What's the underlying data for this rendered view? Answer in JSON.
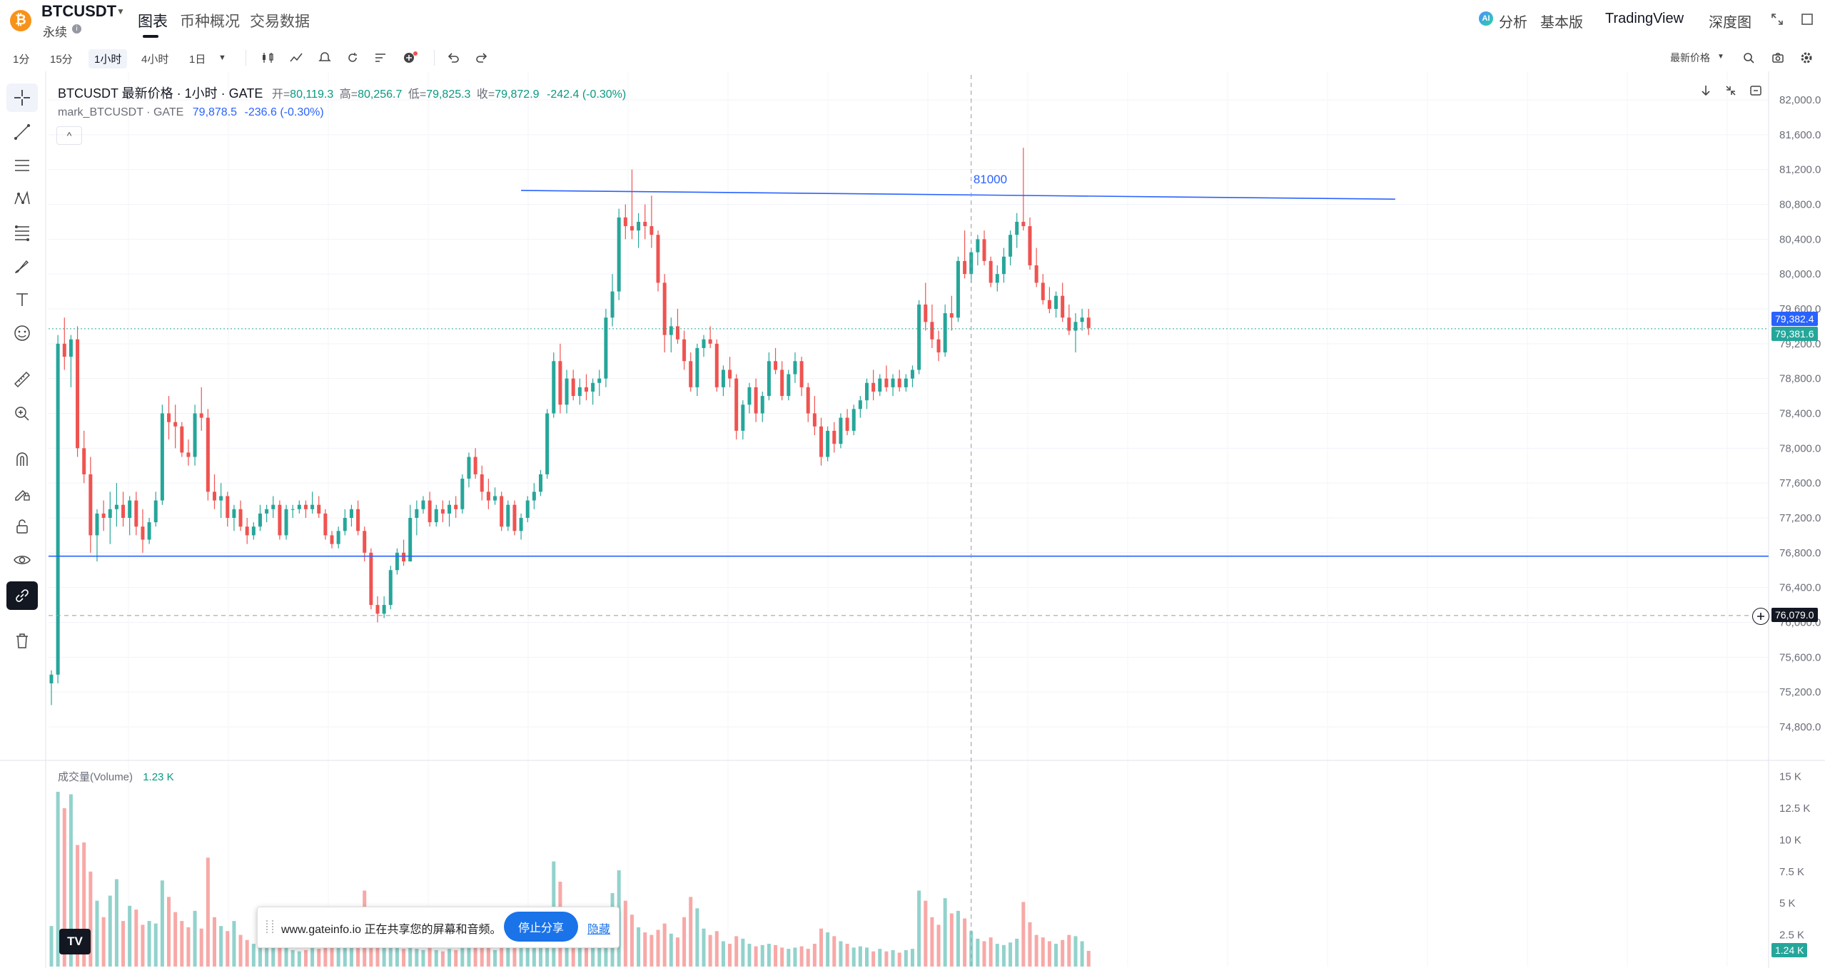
{
  "header": {
    "symbol": "BTCUSDT",
    "coin_glyph": "₿",
    "contract_type": "永续",
    "info_glyph": "i",
    "tabs": [
      {
        "label": "图表",
        "active": true
      },
      {
        "label": "币种概况",
        "active": false
      },
      {
        "label": "交易数据",
        "active": false
      }
    ],
    "ai_glyph": "AI",
    "right_nav": [
      {
        "label": "分析"
      },
      {
        "label": "基本版"
      },
      {
        "label": "TradingView"
      },
      {
        "label": "深度图"
      }
    ]
  },
  "toolbar": {
    "timeframes": [
      {
        "label": "1分",
        "selected": false
      },
      {
        "label": "15分",
        "selected": false
      },
      {
        "label": "1小时",
        "selected": true
      },
      {
        "label": "4小时",
        "selected": false
      },
      {
        "label": "1日",
        "selected": false
      }
    ],
    "price_source_label": "最新价格"
  },
  "legend": {
    "title": "BTCUSDT 最新价格 · 1小时 · GATE",
    "open_label": "开=",
    "open": "80,119.3",
    "high_label": "高=",
    "high": "80,256.7",
    "low_label": "低=",
    "low": "79,825.3",
    "close_label": "收=",
    "close": "79,872.9",
    "change": "-242.4 (-0.30%)",
    "mark_title": "mark_BTCUSDT · GATE",
    "mark_value": "79,878.5",
    "mark_change": "-236.6 (-0.30%)",
    "collapse_glyph": "^"
  },
  "volume": {
    "title": "成交量(Volume)",
    "value": "1.23 K",
    "last_tag": "1.24 K"
  },
  "drawn_line_label": "81000",
  "price_tags": {
    "last_price": "79,382.4",
    "mark_price": "79,381.6",
    "crosshair_price": "76,079.0"
  },
  "share_bar": {
    "text": "www.gateinfo.io 正在共享您的屏幕和音频。",
    "stop_button": "停止分享",
    "hide_link": "隐藏"
  },
  "tv_logo": "TV",
  "colors": {
    "up": "#26a69a",
    "down": "#ef5350",
    "drawn_line": "#2962ff",
    "last_price": "#2962ff",
    "mark_price": "#26a69a",
    "crosshair_tag": "#131722"
  },
  "chart_data": {
    "type": "candlestick",
    "price_axis_ticks": [
      "82,000.0",
      "81,600.0",
      "81,200.0",
      "80,800.0",
      "80,400.0",
      "80,000.0",
      "79,600.0",
      "79,200.0",
      "78,800.0",
      "78,400.0",
      "78,000.0",
      "77,600.0",
      "77,200.0",
      "76,800.0",
      "76,400.0",
      "76,000.0",
      "75,600.0",
      "75,200.0",
      "74,800.0"
    ],
    "price_axis_values": [
      82000,
      81600,
      81200,
      80800,
      80400,
      80000,
      79600,
      79200,
      78800,
      78400,
      78000,
      77600,
      77200,
      76800,
      76400,
      76000,
      75600,
      75200,
      74800
    ],
    "volume_axis_ticks": [
      "15 K",
      "12.5 K",
      "10 K",
      "7.5 K",
      "5 K",
      "2.5 K"
    ],
    "volume_axis_values": [
      15000,
      12500,
      10000,
      7500,
      5000,
      2500
    ],
    "ylim": [
      74500,
      82200
    ],
    "volume_ylim": [
      0,
      15600
    ],
    "horizontal_lines": [
      {
        "price": 76760
      }
    ],
    "trend_lines": [
      {
        "from_index": 72,
        "from_price": 80960,
        "to_index": 206,
        "to_price": 80860,
        "label": "81000"
      }
    ],
    "crosshair": {
      "index": 141,
      "price": 76079
    },
    "ohlcv": [
      [
        75300,
        75450,
        75050,
        75400,
        3200
      ],
      [
        75400,
        79300,
        75300,
        79200,
        13800
      ],
      [
        79200,
        79500,
        78900,
        79050,
        12500
      ],
      [
        79050,
        79300,
        78700,
        79250,
        13600
      ],
      [
        79250,
        79400,
        77900,
        78000,
        9600
      ],
      [
        78000,
        78200,
        77600,
        77700,
        9800
      ],
      [
        77700,
        77900,
        76800,
        77000,
        7500
      ],
      [
        77000,
        77300,
        76700,
        77250,
        5200
      ],
      [
        77250,
        77400,
        77050,
        77200,
        3900
      ],
      [
        77200,
        77500,
        76900,
        77300,
        5600
      ],
      [
        77300,
        77600,
        77100,
        77350,
        6900
      ],
      [
        77350,
        77500,
        77100,
        77200,
        3600
      ],
      [
        77200,
        77450,
        77000,
        77400,
        4800
      ],
      [
        77400,
        77500,
        77000,
        77100,
        4500
      ],
      [
        77100,
        77300,
        76800,
        76950,
        3300
      ],
      [
        76950,
        77200,
        76900,
        77150,
        3600
      ],
      [
        77150,
        77500,
        77100,
        77400,
        3400
      ],
      [
        77400,
        78500,
        77350,
        78400,
        6800
      ],
      [
        78400,
        78600,
        78100,
        78300,
        5500
      ],
      [
        78300,
        78500,
        78000,
        78250,
        4300
      ],
      [
        78250,
        78300,
        77900,
        77950,
        3600
      ],
      [
        77950,
        78100,
        77800,
        77900,
        3100
      ],
      [
        77900,
        78500,
        77800,
        78400,
        4400
      ],
      [
        78400,
        78700,
        78200,
        78350,
        3000
      ],
      [
        78350,
        78450,
        77400,
        77500,
        8600
      ],
      [
        77500,
        77700,
        77300,
        77400,
        3900
      ],
      [
        77400,
        77600,
        77200,
        77450,
        3200
      ],
      [
        77450,
        77500,
        77100,
        77200,
        2800
      ],
      [
        77200,
        77350,
        77050,
        77300,
        3600
      ],
      [
        77300,
        77400,
        77050,
        77100,
        2500
      ],
      [
        77100,
        77200,
        76900,
        77000,
        2100
      ],
      [
        77000,
        77150,
        76950,
        77100,
        1800
      ],
      [
        77100,
        77350,
        77050,
        77250,
        1700
      ],
      [
        77250,
        77350,
        77150,
        77300,
        1500
      ],
      [
        77300,
        77450,
        77200,
        77350,
        1600
      ],
      [
        77350,
        77400,
        76950,
        77000,
        1900
      ],
      [
        77000,
        77350,
        76950,
        77300,
        1700
      ],
      [
        77300,
        77350,
        77200,
        77300,
        1300
      ],
      [
        77300,
        77400,
        77250,
        77350,
        1200
      ],
      [
        77350,
        77400,
        77200,
        77300,
        1300
      ],
      [
        77300,
        77500,
        77250,
        77350,
        1900
      ],
      [
        77350,
        77450,
        77200,
        77250,
        1400
      ],
      [
        77250,
        77300,
        76950,
        77000,
        1500
      ],
      [
        77000,
        77050,
        76850,
        76900,
        1800
      ],
      [
        76900,
        77100,
        76850,
        77050,
        1500
      ],
      [
        77050,
        77300,
        77000,
        77200,
        1700
      ],
      [
        77200,
        77350,
        77100,
        77300,
        2000
      ],
      [
        77300,
        77400,
        77000,
        77050,
        3300
      ],
      [
        77050,
        77100,
        76700,
        76800,
        6000
      ],
      [
        76800,
        76850,
        76150,
        76200,
        2200
      ],
      [
        76200,
        76300,
        76000,
        76100,
        1900
      ],
      [
        76100,
        76300,
        76050,
        76200,
        1700
      ],
      [
        76200,
        76650,
        76150,
        76600,
        1800
      ],
      [
        76600,
        76850,
        76550,
        76800,
        1500
      ],
      [
        76800,
        76950,
        76650,
        76700,
        1400
      ],
      [
        76700,
        77350,
        76700,
        77200,
        2200
      ],
      [
        77200,
        77400,
        77000,
        77300,
        1400
      ],
      [
        77300,
        77450,
        77250,
        77400,
        1300
      ],
      [
        77400,
        77500,
        77100,
        77150,
        1500
      ],
      [
        77150,
        77350,
        77100,
        77300,
        1300
      ],
      [
        77300,
        77400,
        77150,
        77250,
        1200
      ],
      [
        77250,
        77400,
        77100,
        77350,
        1400
      ],
      [
        77350,
        77450,
        77200,
        77300,
        1300
      ],
      [
        77300,
        77700,
        77250,
        77650,
        1700
      ],
      [
        77650,
        77950,
        77550,
        77900,
        2600
      ],
      [
        77900,
        78000,
        77650,
        77700,
        2200
      ],
      [
        77700,
        77800,
        77400,
        77500,
        1900
      ],
      [
        77500,
        77650,
        77300,
        77400,
        1600
      ],
      [
        77400,
        77550,
        77350,
        77450,
        1300
      ],
      [
        77450,
        77500,
        77050,
        77100,
        2400
      ],
      [
        77100,
        77400,
        77050,
        77350,
        1700
      ],
      [
        77350,
        77400,
        77000,
        77050,
        1900
      ],
      [
        77050,
        77250,
        76950,
        77200,
        1500
      ],
      [
        77200,
        77450,
        77150,
        77400,
        1600
      ],
      [
        77400,
        77600,
        77300,
        77500,
        1700
      ],
      [
        77500,
        77750,
        77450,
        77700,
        2000
      ],
      [
        77700,
        78450,
        77650,
        78400,
        3900
      ],
      [
        78400,
        79100,
        78350,
        79000,
        8300
      ],
      [
        79000,
        79200,
        78400,
        78500,
        6700
      ],
      [
        78500,
        78900,
        78400,
        78800,
        4000
      ],
      [
        78800,
        78900,
        78550,
        78600,
        2800
      ],
      [
        78600,
        78800,
        78500,
        78700,
        2500
      ],
      [
        78700,
        78850,
        78550,
        78650,
        2000
      ],
      [
        78650,
        78800,
        78500,
        78750,
        2300
      ],
      [
        78750,
        78900,
        78600,
        78800,
        2100
      ],
      [
        78800,
        79600,
        78700,
        79500,
        3100
      ],
      [
        79500,
        80000,
        79400,
        79800,
        5800
      ],
      [
        79800,
        80750,
        79700,
        80650,
        7600
      ],
      [
        80650,
        80800,
        80400,
        80550,
        5200
      ],
      [
        80550,
        81200,
        80400,
        80500,
        4100
      ],
      [
        80500,
        80700,
        80300,
        80600,
        3100
      ],
      [
        80600,
        80800,
        80400,
        80550,
        2700
      ],
      [
        80550,
        80900,
        80300,
        80450,
        2500
      ],
      [
        80450,
        80500,
        79800,
        79900,
        2900
      ],
      [
        79900,
        80000,
        79100,
        79300,
        3400
      ],
      [
        79300,
        79500,
        79100,
        79400,
        2600
      ],
      [
        79400,
        79600,
        79200,
        79250,
        2300
      ],
      [
        79250,
        79350,
        78900,
        79000,
        3900
      ],
      [
        79000,
        79100,
        78650,
        78700,
        5500
      ],
      [
        78700,
        79200,
        78600,
        79150,
        4600
      ],
      [
        79150,
        79300,
        79050,
        79250,
        3000
      ],
      [
        79250,
        79400,
        79150,
        79200,
        2500
      ],
      [
        79200,
        79250,
        78650,
        78700,
        2800
      ],
      [
        78700,
        78950,
        78600,
        78900,
        2000
      ],
      [
        78900,
        79050,
        78700,
        78800,
        1800
      ],
      [
        78800,
        78850,
        78100,
        78200,
        2400
      ],
      [
        78200,
        78550,
        78100,
        78500,
        2200
      ],
      [
        78500,
        78750,
        78400,
        78700,
        1800
      ],
      [
        78700,
        78800,
        78300,
        78400,
        1600
      ],
      [
        78400,
        78650,
        78300,
        78600,
        1700
      ],
      [
        78600,
        79100,
        78550,
        79000,
        1800
      ],
      [
        79000,
        79150,
        78850,
        78900,
        1700
      ],
      [
        78900,
        79000,
        78550,
        78600,
        1500
      ],
      [
        78600,
        78900,
        78550,
        78850,
        1400
      ],
      [
        78850,
        79100,
        78750,
        79000,
        1500
      ],
      [
        79000,
        79050,
        78600,
        78700,
        1600
      ],
      [
        78700,
        78750,
        78300,
        78400,
        1400
      ],
      [
        78400,
        78600,
        78150,
        78250,
        1800
      ],
      [
        78250,
        78350,
        77800,
        77900,
        3000
      ],
      [
        77900,
        78250,
        77850,
        78200,
        2700
      ],
      [
        78200,
        78300,
        77950,
        78050,
        2400
      ],
      [
        78050,
        78400,
        78000,
        78350,
        2000
      ],
      [
        78350,
        78450,
        78150,
        78200,
        1800
      ],
      [
        78200,
        78500,
        78150,
        78450,
        1500
      ],
      [
        78450,
        78600,
        78350,
        78550,
        1600
      ],
      [
        78550,
        78800,
        78450,
        78750,
        1500
      ],
      [
        78750,
        78900,
        78550,
        78650,
        1200
      ],
      [
        78650,
        78850,
        78600,
        78800,
        1400
      ],
      [
        78800,
        78950,
        78650,
        78700,
        1200
      ],
      [
        78700,
        78850,
        78600,
        78800,
        1300
      ],
      [
        78800,
        78900,
        78650,
        78700,
        1100
      ],
      [
        78700,
        78850,
        78650,
        78800,
        1300
      ],
      [
        78800,
        78950,
        78700,
        78900,
        1400
      ],
      [
        78900,
        79700,
        78850,
        79650,
        6000
      ],
      [
        79650,
        79900,
        79350,
        79450,
        5200
      ],
      [
        79450,
        79650,
        79150,
        79250,
        3900
      ],
      [
        79250,
        79350,
        79000,
        79100,
        3300
      ],
      [
        79100,
        79650,
        79050,
        79550,
        5400
      ],
      [
        79550,
        79750,
        79350,
        79500,
        4200
      ],
      [
        79500,
        80200,
        79450,
        80150,
        4400
      ],
      [
        80150,
        80500,
        79950,
        80000,
        3800
      ],
      [
        80000,
        80300,
        79900,
        80250,
        2800
      ],
      [
        80250,
        80450,
        80100,
        80400,
        2200
      ],
      [
        80400,
        80500,
        80100,
        80150,
        2000
      ],
      [
        80150,
        80200,
        79850,
        79900,
        2300
      ],
      [
        79900,
        80100,
        79800,
        80000,
        1800
      ],
      [
        80000,
        80300,
        79900,
        80200,
        1700
      ],
      [
        80200,
        80500,
        80100,
        80450,
        1900
      ],
      [
        80450,
        80700,
        80300,
        80600,
        2200
      ],
      [
        80600,
        81450,
        80500,
        80550,
        5100
      ],
      [
        80550,
        80650,
        80050,
        80100,
        3500
      ],
      [
        80100,
        80300,
        79850,
        79900,
        2500
      ],
      [
        79900,
        80000,
        79650,
        79700,
        2300
      ],
      [
        79700,
        79850,
        79550,
        79600,
        2000
      ],
      [
        79600,
        79800,
        79500,
        79750,
        1800
      ],
      [
        79750,
        79900,
        79450,
        79500,
        2100
      ],
      [
        79500,
        79650,
        79300,
        79350,
        2500
      ],
      [
        79350,
        79550,
        79100,
        79450,
        2400
      ],
      [
        79450,
        79600,
        79350,
        79500,
        2000
      ],
      [
        79500,
        79600,
        79300,
        79380,
        1240
      ]
    ]
  }
}
